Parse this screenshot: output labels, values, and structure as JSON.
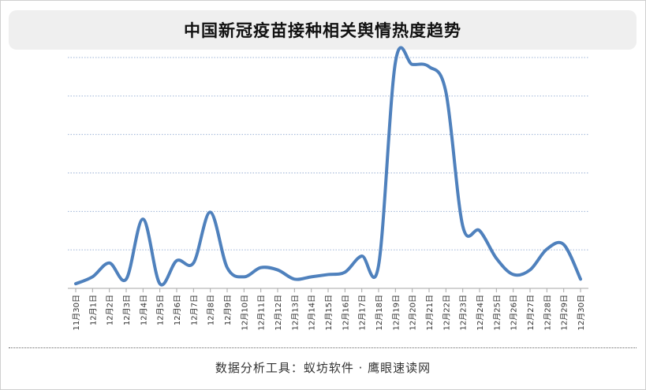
{
  "header": {
    "title": "中国新冠疫苗接种相关舆情热度趋势"
  },
  "footer": {
    "text": "数据分析工具：蚁坊软件 · 鹰眼速读网"
  },
  "chart_data": {
    "type": "line",
    "title": "中国新冠疫苗接种相关舆情热度趋势",
    "xlabel": "",
    "ylabel": "",
    "ylim": [
      0,
      100
    ],
    "y_tick_labels_visible": false,
    "grid": "horizontal-dotted",
    "smooth": true,
    "line_color": "#4f81bd",
    "grid_color": "#9db3d6",
    "categories": [
      "11月30日",
      "12月1日",
      "12月2日",
      "12月3日",
      "12月4日",
      "12月5日",
      "12月6日",
      "12月7日",
      "12月8日",
      "12月9日",
      "12月10日",
      "12月11日",
      "12月12日",
      "12月13日",
      "12月14日",
      "12月15日",
      "12月16日",
      "12月17日",
      "12月18日",
      "12月19日",
      "12月20日",
      "12月21日",
      "12月22日",
      "12月23日",
      "12月24日",
      "12月25日",
      "12月26日",
      "12月27日",
      "12月28日",
      "12月29日",
      "12月30日"
    ],
    "series": [
      {
        "values": [
          2,
          5,
          11,
          4,
          30,
          2,
          12,
          11,
          33,
          9,
          5,
          9,
          8,
          4,
          5,
          6,
          7,
          14,
          10,
          98,
          97,
          96,
          85,
          27,
          25,
          13,
          6,
          8,
          17,
          19,
          4
        ]
      }
    ]
  }
}
